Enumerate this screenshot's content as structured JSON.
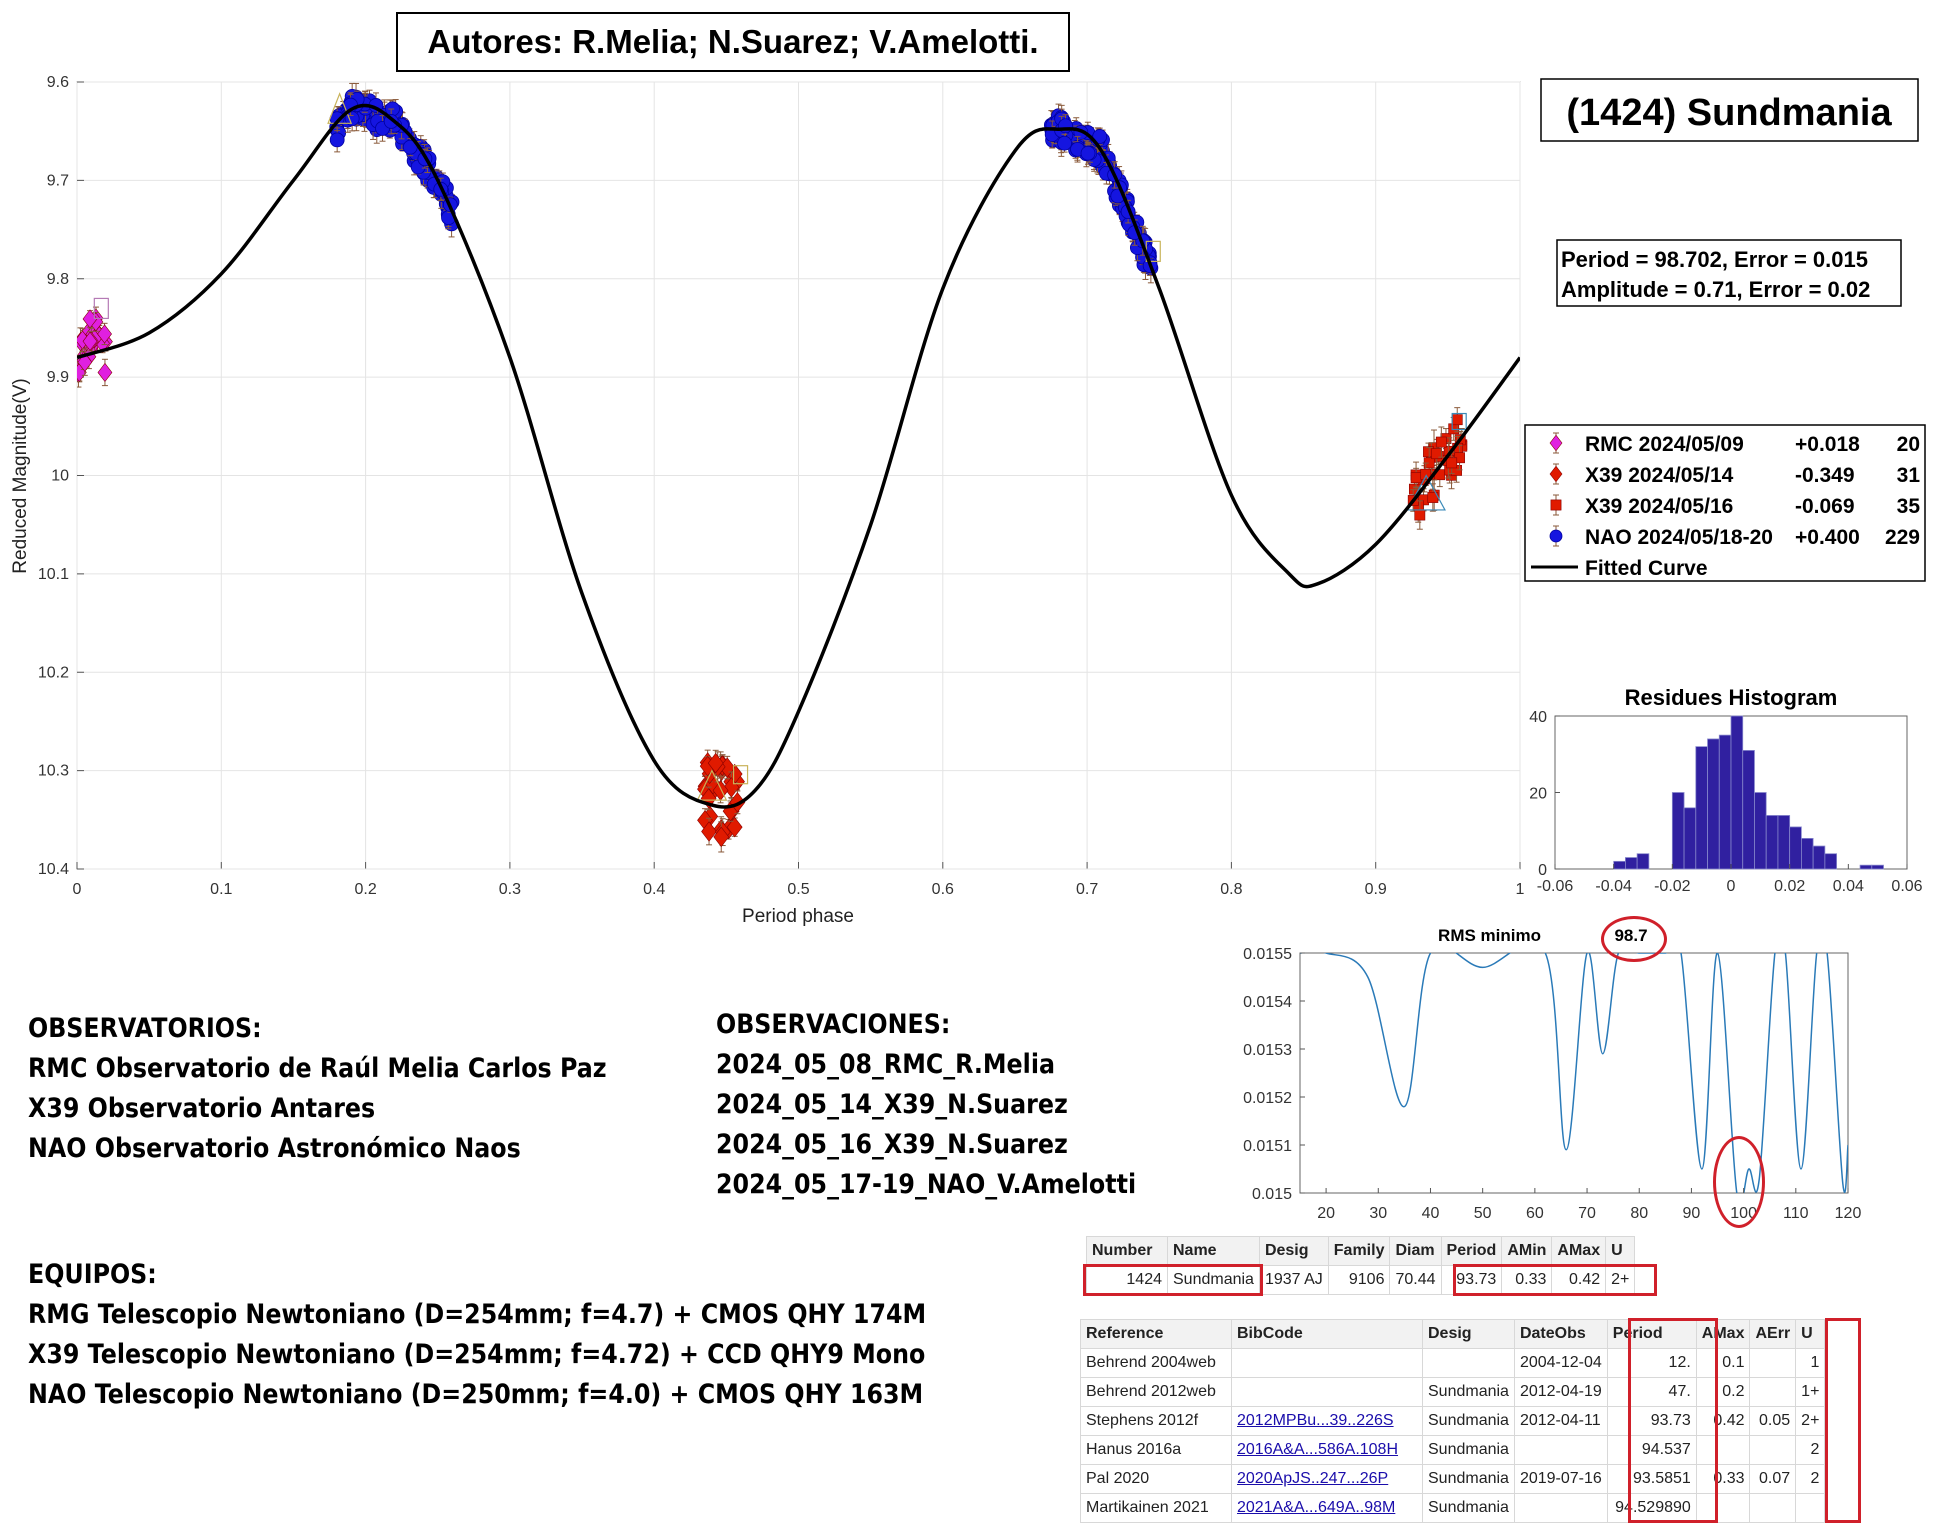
{
  "authors": "Autores: R.Melia; N.Suarez; V.Amelotti.",
  "object_name": "(1424) Sundmania",
  "period_line": "Period =  98.702, Error = 0.015",
  "amplitude_line": "Amplitude = 0.71, Error = 0.02",
  "colors": {
    "rmc": "#e020e0",
    "x39": "#e01a00",
    "nao": "#1515e0",
    "curve": "#000000",
    "hist": "#3020a0",
    "rms": "#2a7ab8",
    "mark": "#d0202a"
  },
  "chart_data": [
    {
      "type": "scatter",
      "ylabel": "Reduced Magnitude(V)",
      "xlabel": "Period phase",
      "xlim": [
        0,
        1
      ],
      "ylim": [
        9.6,
        10.4
      ],
      "y_reversed": true,
      "grid": true,
      "x_ticks": [
        "0",
        "0.1",
        "0.2",
        "0.3",
        "0.4",
        "0.5",
        "0.6",
        "0.7",
        "0.8",
        "0.9",
        "1"
      ],
      "y_ticks": [
        "9.6",
        "9.7",
        "9.8",
        "9.9",
        "10",
        "10.1",
        "10.2",
        "10.3",
        "10.4"
      ],
      "legend_position": "right",
      "legend": [
        {
          "marker": "diamond",
          "name": "RMC 2024/05/09",
          "offset": "+0.018",
          "count": "20"
        },
        {
          "marker": "diamond",
          "name": "X39 2024/05/14",
          "offset": "-0.349",
          "count": "31"
        },
        {
          "marker": "square",
          "name": "X39 2024/05/16",
          "offset": "-0.069",
          "count": "35"
        },
        {
          "marker": "circle",
          "name": "NAO 2024/05/18-20",
          "offset": "+0.400",
          "count": "229"
        },
        {
          "marker": "line",
          "name": "Fitted Curve",
          "offset": "",
          "count": ""
        }
      ],
      "fitted_curve": {
        "x": [
          0.0,
          0.05,
          0.1,
          0.15,
          0.19,
          0.22,
          0.25,
          0.3,
          0.35,
          0.4,
          0.44,
          0.47,
          0.5,
          0.55,
          0.6,
          0.65,
          0.68,
          0.71,
          0.75,
          0.8,
          0.84,
          0.86,
          0.9,
          0.95,
          1.0
        ],
        "y": [
          9.88,
          9.855,
          9.795,
          9.7,
          9.628,
          9.64,
          9.7,
          9.88,
          10.12,
          10.29,
          10.335,
          10.32,
          10.24,
          10.05,
          9.81,
          9.67,
          9.648,
          9.67,
          9.81,
          10.02,
          10.1,
          10.11,
          10.07,
          9.98,
          9.88
        ]
      },
      "series": [
        {
          "name": "RMC 2024/05/09",
          "marker": "diamond",
          "x_range": [
            0.0,
            0.02
          ],
          "y_range": [
            9.835,
            9.9
          ],
          "count": 20
        },
        {
          "name": "X39 2024/05/14",
          "marker": "diamond",
          "x_range": [
            0.435,
            0.46
          ],
          "y_range": [
            10.29,
            10.37
          ],
          "count": 31
        },
        {
          "name": "X39 2024/05/16",
          "marker": "square",
          "x_range": [
            0.925,
            0.96
          ],
          "y_range": [
            9.94,
            10.06
          ],
          "count": 35
        },
        {
          "name": "NAO 2024/05/18-20",
          "marker": "circle",
          "x_ranges": [
            [
              0.18,
              0.26
            ],
            [
              0.675,
              0.745
            ]
          ],
          "count": 229
        }
      ]
    },
    {
      "type": "bar",
      "title": "Residues Histogram",
      "xlim": [
        -0.06,
        0.06
      ],
      "ylim": [
        0,
        40
      ],
      "x_ticks": [
        "-0.06",
        "-0.04",
        "-0.02",
        "0",
        "0.02",
        "0.04",
        "0.06"
      ],
      "y_ticks": [
        "0",
        "20",
        "40"
      ],
      "bin_width": 0.004,
      "bin_starts": [
        -0.04,
        -0.036,
        -0.032,
        -0.028,
        -0.024,
        -0.02,
        -0.016,
        -0.012,
        -0.008,
        -0.004,
        0.0,
        0.004,
        0.008,
        0.012,
        0.016,
        0.02,
        0.024,
        0.028,
        0.032,
        0.036,
        0.04,
        0.044,
        0.048,
        0.052
      ],
      "values": [
        2,
        3,
        4,
        0,
        0,
        20,
        16,
        32,
        34,
        35,
        40,
        31,
        20,
        14,
        14,
        11,
        8,
        6,
        4,
        0,
        0,
        1,
        1,
        0
      ]
    },
    {
      "type": "line",
      "title": "RMS minimo",
      "title_value": "98.7",
      "xlim": [
        15,
        120
      ],
      "ylim": [
        0.015,
        0.0155
      ],
      "x_ticks": [
        "20",
        "30",
        "40",
        "50",
        "60",
        "70",
        "80",
        "90",
        "100",
        "110",
        "120"
      ],
      "y_ticks": [
        "0.015",
        "0.0151",
        "0.0152",
        "0.0153",
        "0.0154",
        "0.0155"
      ],
      "x": [
        15,
        20,
        28,
        35,
        40,
        50,
        62,
        66,
        70,
        73,
        76,
        80,
        85,
        88,
        92,
        95,
        98.7,
        101,
        103,
        106,
        108,
        111,
        114,
        116,
        119,
        120
      ],
      "y": [
        0.0155,
        0.0155,
        0.01545,
        0.01518,
        0.0155,
        0.01547,
        0.0155,
        0.01509,
        0.0155,
        0.01529,
        0.0155,
        0.0155,
        0.0155,
        0.0155,
        0.01505,
        0.0155,
        0.015,
        0.01505,
        0.01503,
        0.0155,
        0.0155,
        0.01505,
        0.0155,
        0.0155,
        0.01502,
        0.0151
      ]
    }
  ],
  "observatorios": {
    "heading": "OBSERVATORIOS:",
    "lines": [
      "RMC Observatorio de Raúl Melia Carlos Paz",
      "X39 Observatorio Antares",
      "NAO Observatorio Astronómico Naos"
    ]
  },
  "observaciones": {
    "heading": "OBSERVACIONES:",
    "lines": [
      "2024_05_08_RMC_R.Melia",
      "2024_05_14_X39_N.Suarez",
      "2024_05_16_X39_N.Suarez",
      "2024_05_17-19_NAO_V.Amelotti"
    ]
  },
  "equipos": {
    "heading": "EQUIPOS:",
    "lines": [
      "RMG Telescopio Newtoniano (D=254mm; f=4.7) + CMOS QHY 174M",
      "X39 Telescopio Newtoniano (D=254mm; f=4.72) + CCD QHY9 Mono",
      "NAO Telescopio Newtoniano (D=250mm; f=4.0) + CMOS QHY 163M"
    ]
  },
  "table1": {
    "headers": [
      "Number",
      "Name",
      "Desig",
      "Family",
      "Diam",
      "Period",
      "AMin",
      "AMax",
      "U"
    ],
    "row": [
      "1424",
      "Sundmania",
      "1937 AJ",
      "9106",
      "70.44",
      "93.73",
      "0.33",
      "0.42",
      "2+"
    ]
  },
  "table2": {
    "headers": [
      "Reference",
      "BibCode",
      "Desig",
      "DateObs",
      "Period",
      "AMax",
      "AErr",
      "U"
    ],
    "rows": [
      [
        "Behrend 2004web",
        "",
        "",
        "2004-12-04",
        "12.",
        "0.1",
        "",
        "1"
      ],
      [
        "Behrend 2012web",
        "",
        "Sundmania",
        "2012-04-19",
        "47.",
        "0.2",
        "",
        "1+"
      ],
      [
        "Stephens 2012f",
        "2012MPBu...39..226S",
        "Sundmania",
        "2012-04-11",
        "93.73",
        "0.42",
        "0.05",
        "2+"
      ],
      [
        "Hanus 2016a",
        "2016A&A...586A.108H",
        "Sundmania",
        "",
        "94.537",
        "",
        "",
        "2"
      ],
      [
        "Pal 2020",
        "2020ApJS..247...26P",
        "Sundmania",
        "2019-07-16",
        "93.5851",
        "0.33",
        "0.07",
        "2"
      ],
      [
        "Martikainen 2021",
        "2021A&A...649A..98M",
        "Sundmania",
        "",
        "94.529890",
        "",
        "",
        ""
      ]
    ]
  }
}
